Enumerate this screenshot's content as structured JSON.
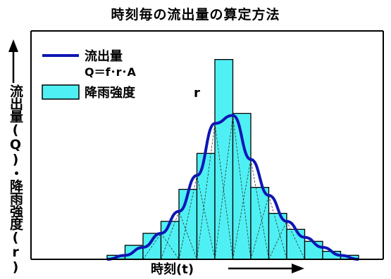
{
  "title": "時刻毎の流出量の算定方法",
  "y_axis_label": "流出量(Q)・降雨強度(r)",
  "x_axis_label": "時刻(t)",
  "legend": {
    "runoff_name": "流出量",
    "runoff_formula": "Q＝f･r･A",
    "rain_name": "降雨強度",
    "rain_symbol": "r"
  },
  "colors": {
    "rain_bar": "#4ff0f3",
    "runoff_line": "#0d16b4",
    "axis": "#000000",
    "triangle_lines": "#333333"
  },
  "chart_data": {
    "type": "bar",
    "description_series": [
      {
        "name": "降雨強度",
        "kind": "bar",
        "values": [
          2,
          7,
          13,
          19,
          35,
          53,
          100,
          73,
          36,
          23,
          15,
          9,
          4,
          2
        ]
      },
      {
        "name": "流出量",
        "kind": "line",
        "t": [
          0,
          1,
          2,
          3,
          4,
          5,
          6,
          7,
          8,
          9,
          10,
          11,
          12,
          13,
          14
        ],
        "values": [
          0,
          2,
          6,
          13,
          24,
          42,
          68,
          72,
          50,
          32,
          19,
          11,
          6,
          2,
          0
        ]
      }
    ],
    "xlabel": "時刻(t)",
    "ylabel": "流出量(Q)・降雨強度(r)",
    "ylim": [
      0,
      115
    ],
    "grid": false,
    "legend_position": "top-left"
  }
}
